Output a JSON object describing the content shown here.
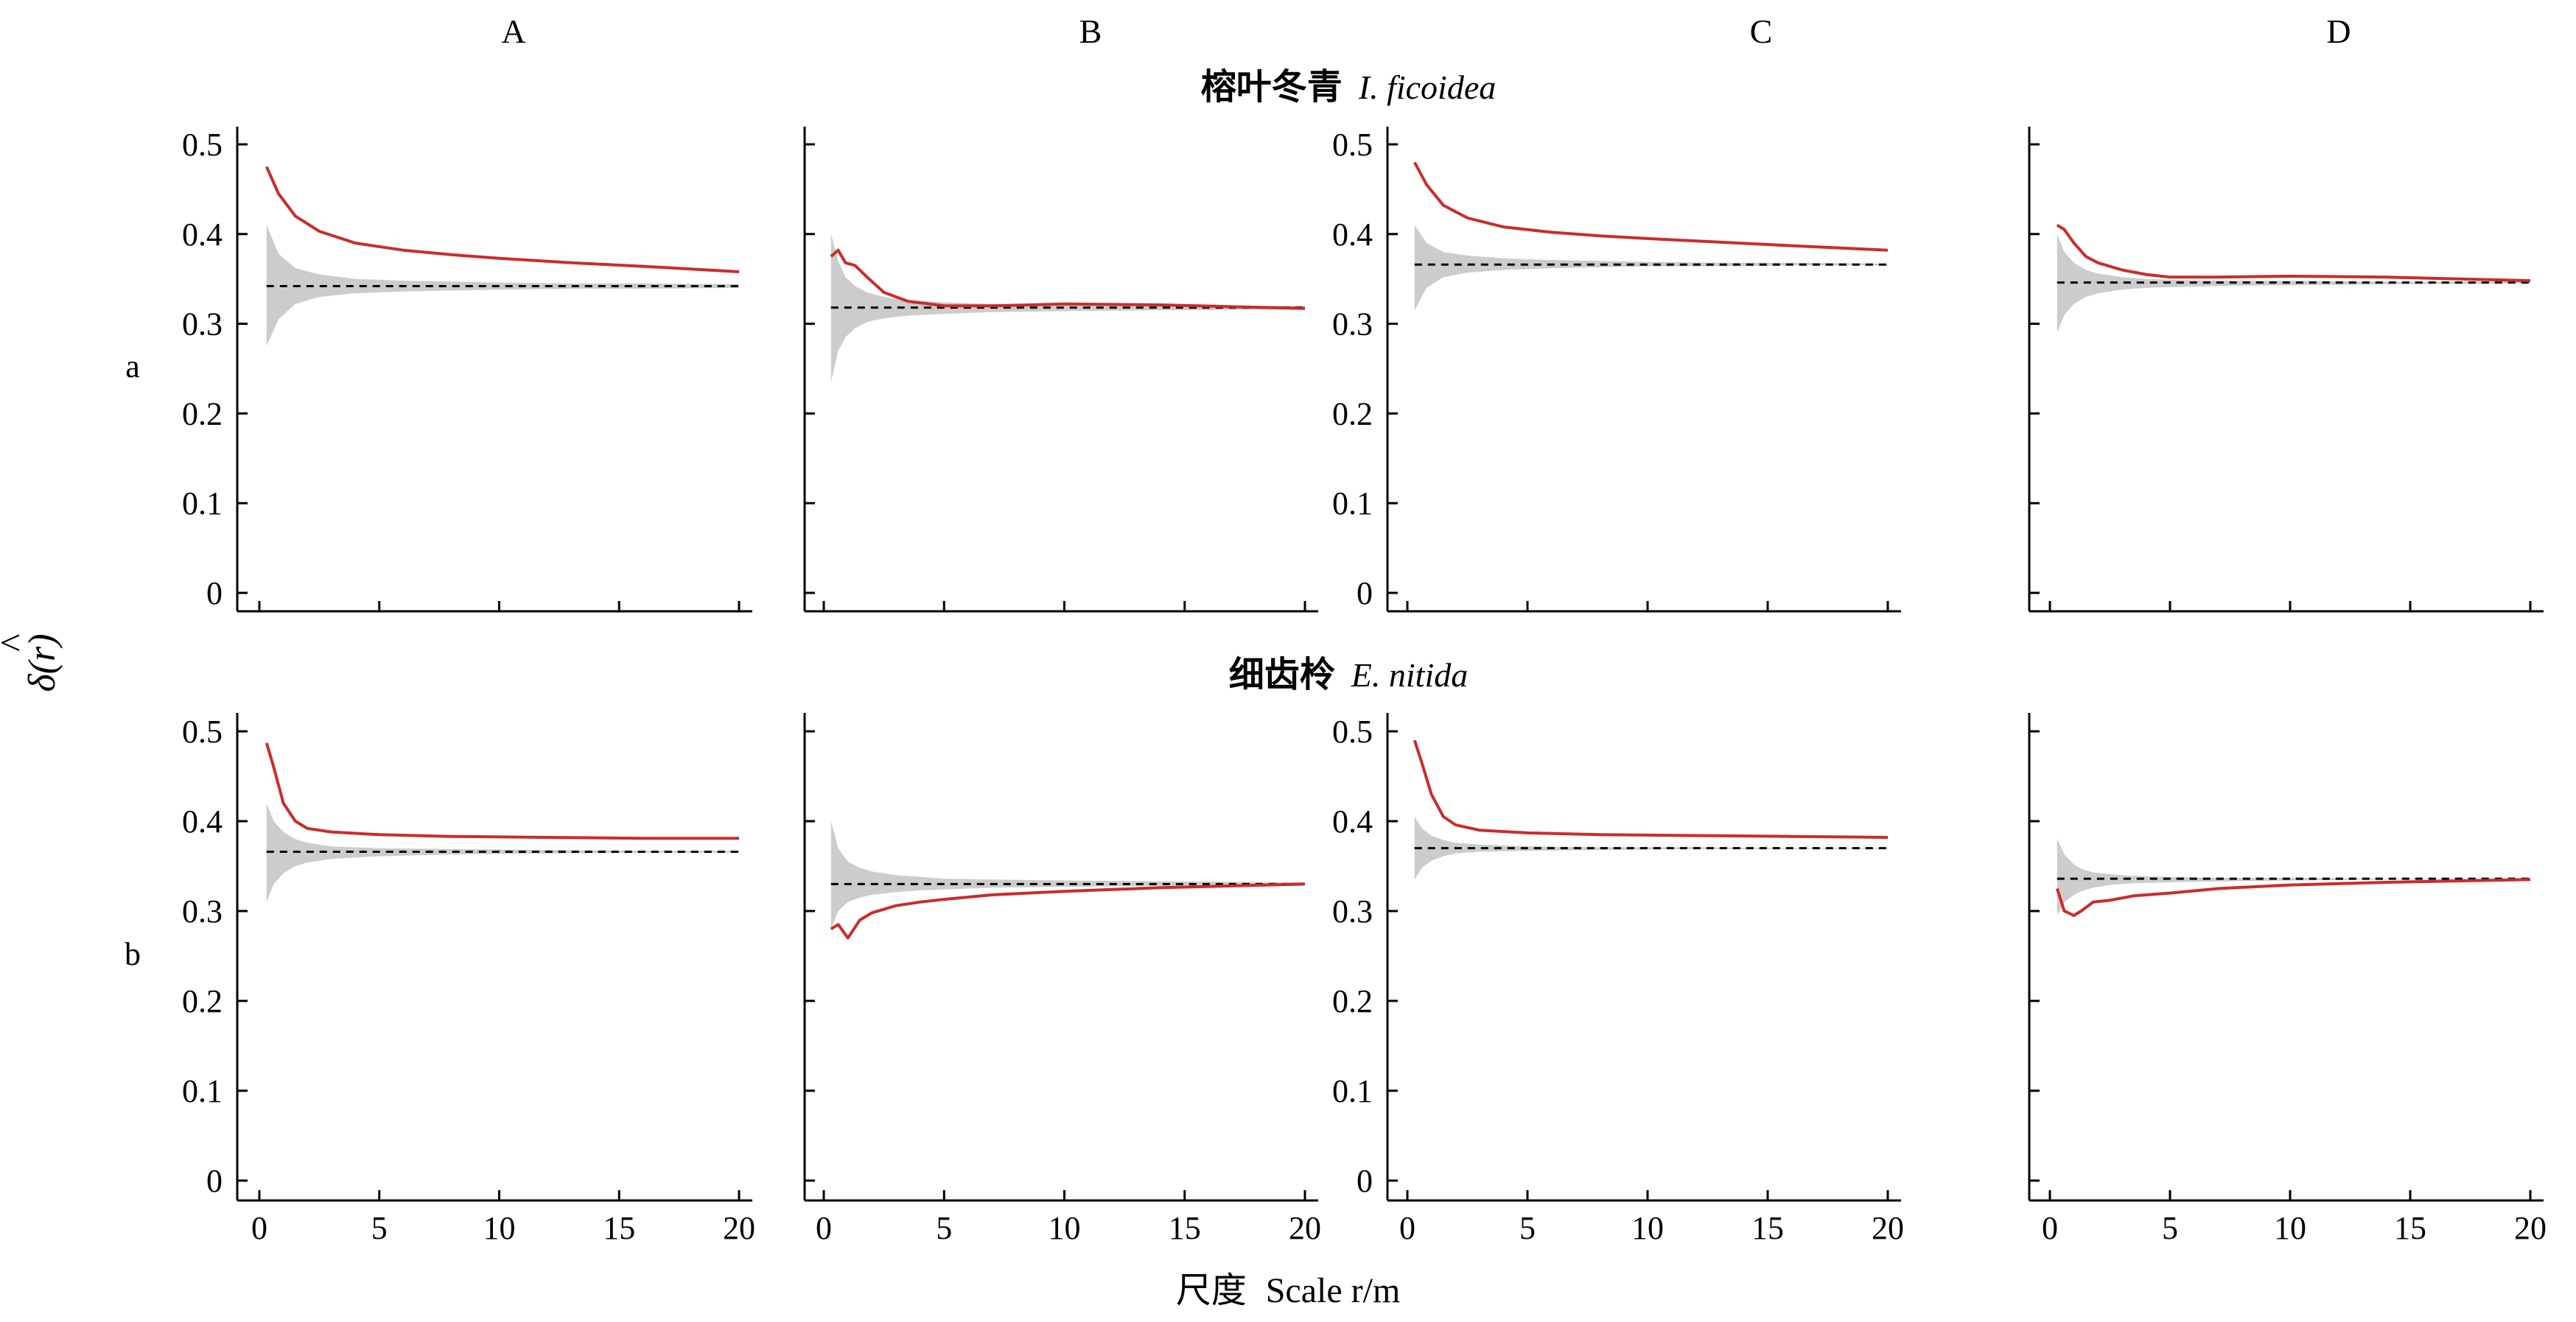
{
  "figure": {
    "columns": [
      "A",
      "B",
      "C",
      "D"
    ],
    "rows": [
      {
        "letter": "a",
        "title_cn": "榕叶冬青",
        "title_latin": "I. ficoidea"
      },
      {
        "letter": "b",
        "title_cn": "细齿柃",
        "title_latin": "E. nitida"
      }
    ],
    "ylabel": "δ(r)",
    "ylabel_hat": "^",
    "xlabel_cn": "尺度",
    "xlabel_en": "Scale r/m",
    "colors": {
      "observed": "#cc2b2b",
      "envelope": "#cccccc",
      "expected": "#000000"
    }
  },
  "chart_data": [
    {
      "type": "line",
      "panel": "a-A",
      "xlim": [
        0,
        20
      ],
      "ylim": [
        0,
        0.5
      ],
      "xticks": [
        "0",
        "5",
        "10",
        "15",
        "20"
      ],
      "yticks": [
        "0",
        "0.1",
        "0.2",
        "0.3",
        "0.4",
        "0.5"
      ],
      "x": [
        0.3,
        0.8,
        1.5,
        2.5,
        4,
        6,
        8,
        10,
        13,
        16,
        20
      ],
      "observed": [
        0.475,
        0.445,
        0.42,
        0.403,
        0.39,
        0.382,
        0.377,
        0.373,
        0.368,
        0.364,
        0.358
      ],
      "expected": 0.342,
      "envelope_upper": [
        0.41,
        0.378,
        0.362,
        0.355,
        0.35,
        0.348,
        0.347,
        0.346,
        0.345,
        0.345,
        0.344
      ],
      "envelope_lower": [
        0.275,
        0.305,
        0.322,
        0.33,
        0.334,
        0.336,
        0.337,
        0.338,
        0.339,
        0.339,
        0.34
      ]
    },
    {
      "type": "line",
      "panel": "a-B",
      "xlim": [
        0,
        20
      ],
      "ylim": [
        0,
        0.5
      ],
      "xticks": [
        "0",
        "5",
        "10",
        "15",
        "20"
      ],
      "yticks": [
        "0",
        "0.1",
        "0.2",
        "0.3",
        "0.4",
        "0.5"
      ],
      "x": [
        0.3,
        0.6,
        0.9,
        1.3,
        1.8,
        2.5,
        3.5,
        5,
        7,
        10,
        14,
        20
      ],
      "observed": [
        0.375,
        0.382,
        0.368,
        0.365,
        0.352,
        0.335,
        0.325,
        0.32,
        0.32,
        0.322,
        0.321,
        0.317
      ],
      "expected": 0.318,
      "envelope_upper": [
        0.4,
        0.37,
        0.352,
        0.342,
        0.335,
        0.33,
        0.326,
        0.324,
        0.322,
        0.321,
        0.32,
        0.32
      ],
      "envelope_lower": [
        0.235,
        0.27,
        0.285,
        0.295,
        0.302,
        0.306,
        0.309,
        0.311,
        0.313,
        0.314,
        0.315,
        0.316
      ]
    },
    {
      "type": "line",
      "panel": "a-C",
      "xlim": [
        0,
        20
      ],
      "ylim": [
        0,
        0.5
      ],
      "xticks": [
        "0",
        "5",
        "10",
        "15",
        "20"
      ],
      "yticks": [
        "0",
        "0.1",
        "0.2",
        "0.3",
        "0.4",
        "0.5"
      ],
      "x": [
        0.3,
        0.8,
        1.5,
        2.5,
        4,
        6,
        8,
        10,
        13,
        16,
        20
      ],
      "observed": [
        0.48,
        0.455,
        0.432,
        0.418,
        0.408,
        0.402,
        0.398,
        0.395,
        0.391,
        0.387,
        0.382
      ],
      "expected": 0.366,
      "envelope_upper": [
        0.41,
        0.39,
        0.38,
        0.376,
        0.373,
        0.371,
        0.37,
        0.369,
        0.368,
        0.368,
        0.367
      ],
      "envelope_lower": [
        0.315,
        0.34,
        0.352,
        0.357,
        0.36,
        0.362,
        0.363,
        0.364,
        0.364,
        0.365,
        0.365
      ]
    },
    {
      "type": "line",
      "panel": "a-D",
      "xlim": [
        0,
        20
      ],
      "ylim": [
        0,
        0.5
      ],
      "xticks": [
        "0",
        "5",
        "10",
        "15",
        "20"
      ],
      "yticks": [
        "0",
        "0.1",
        "0.2",
        "0.3",
        "0.4",
        "0.5"
      ],
      "x": [
        0.3,
        0.6,
        1,
        1.5,
        2,
        3,
        4,
        5,
        7,
        10,
        14,
        20
      ],
      "observed": [
        0.41,
        0.405,
        0.39,
        0.375,
        0.368,
        0.36,
        0.355,
        0.352,
        0.352,
        0.353,
        0.352,
        0.348
      ],
      "expected": 0.346,
      "envelope_upper": [
        0.4,
        0.38,
        0.368,
        0.36,
        0.356,
        0.352,
        0.35,
        0.349,
        0.348,
        0.348,
        0.347,
        0.347
      ],
      "envelope_lower": [
        0.29,
        0.31,
        0.322,
        0.33,
        0.334,
        0.338,
        0.34,
        0.341,
        0.342,
        0.343,
        0.344,
        0.345
      ]
    },
    {
      "type": "line",
      "panel": "b-A",
      "xlim": [
        0,
        20
      ],
      "ylim": [
        0,
        0.5
      ],
      "xticks": [
        "0",
        "5",
        "10",
        "15",
        "20"
      ],
      "yticks": [
        "0",
        "0.1",
        "0.2",
        "0.3",
        "0.4",
        "0.5"
      ],
      "x": [
        0.3,
        0.6,
        1,
        1.5,
        2,
        3,
        5,
        8,
        12,
        16,
        20
      ],
      "observed": [
        0.487,
        0.46,
        0.42,
        0.4,
        0.392,
        0.388,
        0.385,
        0.383,
        0.382,
        0.381,
        0.381
      ],
      "expected": 0.366,
      "envelope_upper": [
        0.42,
        0.4,
        0.388,
        0.38,
        0.376,
        0.372,
        0.37,
        0.369,
        0.368,
        0.367,
        0.367
      ],
      "envelope_lower": [
        0.31,
        0.33,
        0.342,
        0.35,
        0.354,
        0.358,
        0.361,
        0.363,
        0.364,
        0.365,
        0.365
      ]
    },
    {
      "type": "line",
      "panel": "b-B",
      "xlim": [
        0,
        20
      ],
      "ylim": [
        0,
        0.5
      ],
      "xticks": [
        "0",
        "5",
        "10",
        "15",
        "20"
      ],
      "yticks": [
        "0",
        "0.1",
        "0.2",
        "0.3",
        "0.4",
        "0.5"
      ],
      "x": [
        0.3,
        0.6,
        1,
        1.5,
        2,
        3,
        4,
        5,
        7,
        10,
        14,
        20
      ],
      "observed": [
        0.28,
        0.285,
        0.27,
        0.29,
        0.298,
        0.306,
        0.31,
        0.313,
        0.318,
        0.322,
        0.326,
        0.33
      ],
      "expected": 0.33,
      "envelope_upper": [
        0.4,
        0.37,
        0.355,
        0.348,
        0.344,
        0.34,
        0.338,
        0.336,
        0.335,
        0.334,
        0.333,
        0.332
      ],
      "envelope_lower": [
        0.28,
        0.3,
        0.31,
        0.315,
        0.318,
        0.321,
        0.323,
        0.324,
        0.326,
        0.327,
        0.328,
        0.329
      ]
    },
    {
      "type": "line",
      "panel": "b-C",
      "xlim": [
        0,
        20
      ],
      "ylim": [
        0,
        0.5
      ],
      "xticks": [
        "0",
        "5",
        "10",
        "15",
        "20"
      ],
      "yticks": [
        "0",
        "0.1",
        "0.2",
        "0.3",
        "0.4",
        "0.5"
      ],
      "x": [
        0.3,
        0.6,
        1,
        1.5,
        2,
        3,
        5,
        8,
        12,
        16,
        20
      ],
      "observed": [
        0.49,
        0.465,
        0.43,
        0.405,
        0.396,
        0.39,
        0.387,
        0.385,
        0.384,
        0.383,
        0.382
      ],
      "expected": 0.37,
      "envelope_upper": [
        0.405,
        0.392,
        0.384,
        0.379,
        0.376,
        0.374,
        0.372,
        0.371,
        0.371,
        0.37,
        0.37
      ],
      "envelope_lower": [
        0.335,
        0.348,
        0.356,
        0.361,
        0.364,
        0.366,
        0.367,
        0.368,
        0.369,
        0.369,
        0.369
      ]
    },
    {
      "type": "line",
      "panel": "b-D",
      "xlim": [
        0,
        20
      ],
      "ylim": [
        0,
        0.5
      ],
      "xticks": [
        "0",
        "5",
        "10",
        "15",
        "20"
      ],
      "yticks": [
        "0",
        "0.1",
        "0.2",
        "0.3",
        "0.4",
        "0.5"
      ],
      "x": [
        0.3,
        0.6,
        1,
        1.3,
        1.8,
        2.5,
        3.5,
        5,
        7,
        10,
        14,
        20
      ],
      "observed": [
        0.325,
        0.3,
        0.295,
        0.3,
        0.31,
        0.312,
        0.317,
        0.32,
        0.325,
        0.329,
        0.332,
        0.335
      ],
      "expected": 0.336,
      "envelope_upper": [
        0.38,
        0.363,
        0.352,
        0.347,
        0.343,
        0.341,
        0.339,
        0.338,
        0.337,
        0.337,
        0.336,
        0.336
      ],
      "envelope_lower": [
        0.295,
        0.31,
        0.318,
        0.322,
        0.326,
        0.329,
        0.331,
        0.332,
        0.333,
        0.334,
        0.335,
        0.335
      ]
    }
  ]
}
